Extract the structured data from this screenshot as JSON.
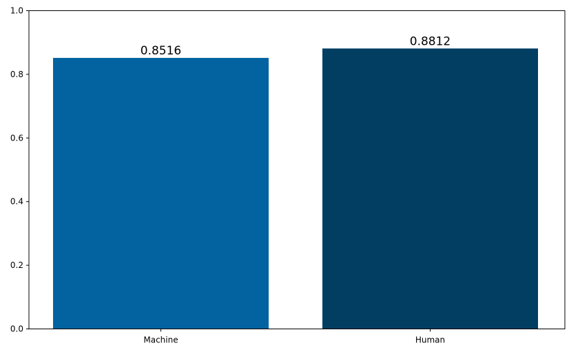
{
  "chart_data": {
    "type": "bar",
    "categories": [
      "Machine",
      "Human"
    ],
    "values": [
      0.8516,
      0.8812
    ],
    "data_labels": [
      "0.8516",
      "0.8812"
    ],
    "colors": [
      "#0263a0",
      "#023d62"
    ],
    "ylim": [
      0,
      1.0
    ],
    "yticks": [
      "0.0",
      "0.2",
      "0.4",
      "0.6",
      "0.8",
      "1.0"
    ],
    "grid": false,
    "title": "",
    "xlabel": "",
    "ylabel": ""
  }
}
